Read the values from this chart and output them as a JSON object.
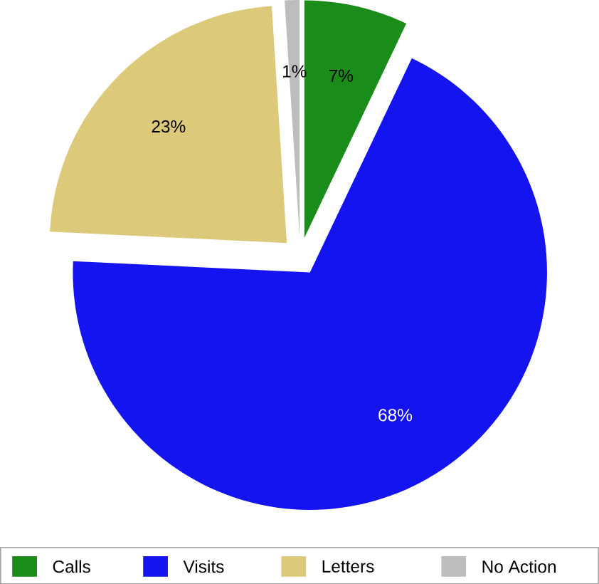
{
  "chart_data": {
    "type": "pie",
    "categories": [
      "Calls",
      "Visits",
      "Letters",
      "No Action"
    ],
    "values": [
      7,
      68,
      23,
      1
    ],
    "colors": [
      "#1a8c1a",
      "#1414f0",
      "#dcc97a",
      "#bdbdbd"
    ],
    "value_labels": [
      "7%",
      "68%",
      "23%",
      "1%"
    ],
    "legend": "bottom"
  }
}
